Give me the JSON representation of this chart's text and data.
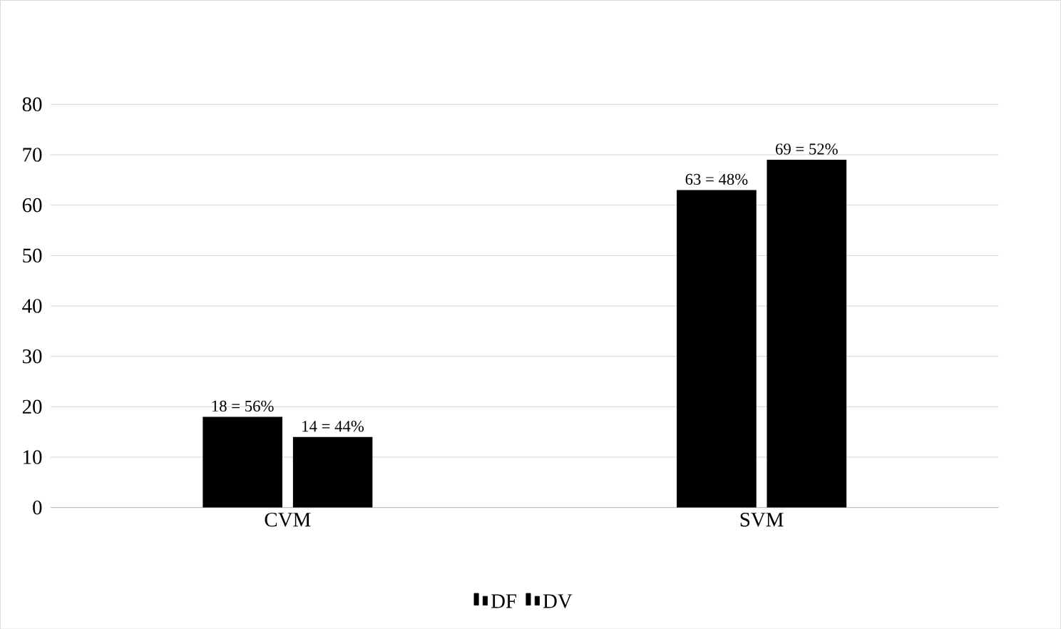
{
  "chart_data": {
    "type": "bar",
    "categories": [
      "CVM",
      "SVM"
    ],
    "series": [
      {
        "name": "DF",
        "color": "#000000",
        "values": [
          18,
          63
        ],
        "value_labels": [
          "18 = 56%",
          "63 = 48%"
        ]
      },
      {
        "name": "DV",
        "color": "#000000",
        "values": [
          14,
          69
        ],
        "value_labels": [
          "14 = 44%",
          "69 = 52%"
        ]
      }
    ],
    "ylim": [
      0,
      80
    ],
    "yticks": [
      0,
      10,
      20,
      30,
      40,
      50,
      60,
      70,
      80
    ],
    "grid": "y",
    "legend": "bottom"
  }
}
